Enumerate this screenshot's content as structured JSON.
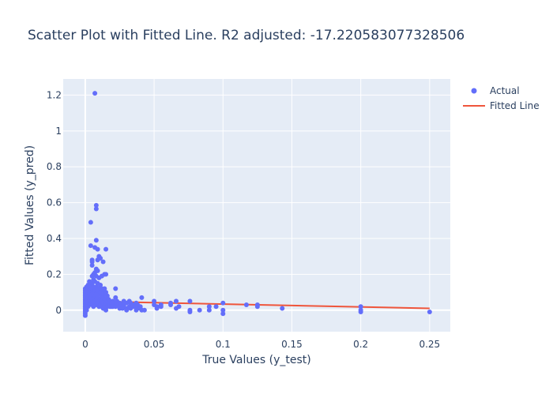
{
  "chart_data": {
    "type": "scatter",
    "title": "Scatter Plot with Fitted Line. R2 adjusted: -17.220583077328506",
    "xlabel": "True Values (y_test)",
    "ylabel": "Fitted Values (y_pred)",
    "xlim": [
      -0.016,
      0.265
    ],
    "ylim": [
      -0.12,
      1.29
    ],
    "x_ticks": [
      0,
      0.05,
      0.1,
      0.15,
      0.2,
      0.25
    ],
    "x_tick_labels": [
      "0",
      "0.05",
      "0.1",
      "0.15",
      "0.2",
      "0.25"
    ],
    "y_ticks": [
      0,
      0.2,
      0.4,
      0.6,
      0.8,
      1,
      1.2
    ],
    "y_tick_labels": [
      "0",
      "0.2",
      "0.4",
      "0.6",
      "0.8",
      "1",
      "1.2"
    ],
    "grid": true,
    "legend_position": "top-right",
    "background_color": "#e5ecf6",
    "series": [
      {
        "name": "Actual",
        "mode": "markers",
        "color": "#636efa",
        "points": [
          [
            0.0,
            0.12
          ],
          [
            0.0,
            0.1
          ],
          [
            0.0,
            0.08
          ],
          [
            0.0,
            0.06
          ],
          [
            0.0,
            0.04
          ],
          [
            0.0,
            0.02
          ],
          [
            0.0,
            0.0
          ],
          [
            0.0,
            -0.02
          ],
          [
            0.0,
            -0.03
          ],
          [
            0.0,
            0.09
          ],
          [
            0.0,
            0.05
          ],
          [
            0.0,
            0.11
          ],
          [
            0.0,
            0.07
          ],
          [
            0.0,
            0.03
          ],
          [
            0.0,
            0.01
          ],
          [
            0.0,
            -0.01
          ],
          [
            0.001,
            0.13
          ],
          [
            0.001,
            0.09
          ],
          [
            0.001,
            0.06
          ],
          [
            0.001,
            0.03
          ],
          [
            0.001,
            0.0
          ],
          [
            0.001,
            0.11
          ],
          [
            0.001,
            0.05
          ],
          [
            0.001,
            0.02
          ],
          [
            0.002,
            0.14
          ],
          [
            0.002,
            0.1
          ],
          [
            0.002,
            0.07
          ],
          [
            0.002,
            0.04
          ],
          [
            0.002,
            0.12
          ],
          [
            0.002,
            0.02
          ],
          [
            0.003,
            0.16
          ],
          [
            0.003,
            0.12
          ],
          [
            0.003,
            0.08
          ],
          [
            0.003,
            0.05
          ],
          [
            0.003,
            0.03
          ],
          [
            0.003,
            0.1
          ],
          [
            0.004,
            0.49
          ],
          [
            0.004,
            0.36
          ],
          [
            0.004,
            0.11
          ],
          [
            0.004,
            0.07
          ],
          [
            0.004,
            0.04
          ],
          [
            0.004,
            0.14
          ],
          [
            0.005,
            0.28
          ],
          [
            0.005,
            0.25
          ],
          [
            0.005,
            0.19
          ],
          [
            0.005,
            0.15
          ],
          [
            0.005,
            0.12
          ],
          [
            0.005,
            0.09
          ],
          [
            0.005,
            0.06
          ],
          [
            0.005,
            0.03
          ],
          [
            0.005,
            0.27
          ],
          [
            0.006,
            0.2
          ],
          [
            0.006,
            0.17
          ],
          [
            0.006,
            0.13
          ],
          [
            0.006,
            0.1
          ],
          [
            0.006,
            0.07
          ],
          [
            0.006,
            0.04
          ],
          [
            0.006,
            0.02
          ],
          [
            0.007,
            1.21
          ],
          [
            0.007,
            0.35
          ],
          [
            0.007,
            0.21
          ],
          [
            0.007,
            0.16
          ],
          [
            0.007,
            0.11
          ],
          [
            0.007,
            0.08
          ],
          [
            0.007,
            0.05
          ],
          [
            0.008,
            0.585
          ],
          [
            0.008,
            0.565
          ],
          [
            0.008,
            0.39
          ],
          [
            0.008,
            0.23
          ],
          [
            0.008,
            0.19
          ],
          [
            0.008,
            0.13
          ],
          [
            0.008,
            0.09
          ],
          [
            0.008,
            0.06
          ],
          [
            0.008,
            0.03
          ],
          [
            0.009,
            0.34
          ],
          [
            0.009,
            0.28
          ],
          [
            0.009,
            0.22
          ],
          [
            0.009,
            0.15
          ],
          [
            0.009,
            0.11
          ],
          [
            0.009,
            0.07
          ],
          [
            0.009,
            0.04
          ],
          [
            0.01,
            0.3
          ],
          [
            0.01,
            0.29
          ],
          [
            0.01,
            0.18
          ],
          [
            0.01,
            0.12
          ],
          [
            0.01,
            0.09
          ],
          [
            0.01,
            0.05
          ],
          [
            0.01,
            0.02
          ],
          [
            0.011,
            0.29
          ],
          [
            0.011,
            0.14
          ],
          [
            0.011,
            0.1
          ],
          [
            0.011,
            0.06
          ],
          [
            0.011,
            0.03
          ],
          [
            0.012,
            0.19
          ],
          [
            0.012,
            0.12
          ],
          [
            0.012,
            0.08
          ],
          [
            0.012,
            0.05
          ],
          [
            0.012,
            0.02
          ],
          [
            0.013,
            0.27
          ],
          [
            0.013,
            0.11
          ],
          [
            0.013,
            0.07
          ],
          [
            0.013,
            0.04
          ],
          [
            0.013,
            0.01
          ],
          [
            0.014,
            0.2
          ],
          [
            0.014,
            0.12
          ],
          [
            0.014,
            0.09
          ],
          [
            0.014,
            0.05
          ],
          [
            0.014,
            0.02
          ],
          [
            0.015,
            0.34
          ],
          [
            0.015,
            0.2
          ],
          [
            0.015,
            0.1
          ],
          [
            0.015,
            0.06
          ],
          [
            0.015,
            0.03
          ],
          [
            0.015,
            0.0
          ],
          [
            0.016,
            0.08
          ],
          [
            0.016,
            0.05
          ],
          [
            0.016,
            0.02
          ],
          [
            0.017,
            0.06
          ],
          [
            0.017,
            0.03
          ],
          [
            0.018,
            0.05
          ],
          [
            0.018,
            0.03
          ],
          [
            0.018,
            0.02
          ],
          [
            0.019,
            0.04
          ],
          [
            0.019,
            0.02
          ],
          [
            0.02,
            0.05
          ],
          [
            0.02,
            0.03
          ],
          [
            0.02,
            0.02
          ],
          [
            0.022,
            0.12
          ],
          [
            0.022,
            0.07
          ],
          [
            0.022,
            0.04
          ],
          [
            0.022,
            0.02
          ],
          [
            0.023,
            0.05
          ],
          [
            0.023,
            0.03
          ],
          [
            0.025,
            0.04
          ],
          [
            0.025,
            0.02
          ],
          [
            0.025,
            0.01
          ],
          [
            0.027,
            0.03
          ],
          [
            0.027,
            0.01
          ],
          [
            0.028,
            0.05
          ],
          [
            0.028,
            0.03
          ],
          [
            0.028,
            0.02
          ],
          [
            0.03,
            0.04
          ],
          [
            0.03,
            0.01
          ],
          [
            0.03,
            0.0
          ],
          [
            0.032,
            0.05
          ],
          [
            0.032,
            0.02
          ],
          [
            0.033,
            0.04
          ],
          [
            0.033,
            0.01
          ],
          [
            0.035,
            0.03
          ],
          [
            0.035,
            0.02
          ],
          [
            0.037,
            0.04
          ],
          [
            0.037,
            0.02
          ],
          [
            0.037,
            0.0
          ],
          [
            0.038,
            0.03
          ],
          [
            0.038,
            0.01
          ],
          [
            0.04,
            0.02
          ],
          [
            0.04,
            0.01
          ],
          [
            0.041,
            0.07
          ],
          [
            0.041,
            0.0
          ],
          [
            0.043,
            0.0
          ],
          [
            0.05,
            0.05
          ],
          [
            0.05,
            0.03
          ],
          [
            0.052,
            0.02
          ],
          [
            0.052,
            0.01
          ],
          [
            0.055,
            0.03
          ],
          [
            0.055,
            0.02
          ],
          [
            0.062,
            0.04
          ],
          [
            0.062,
            0.03
          ],
          [
            0.066,
            0.05
          ],
          [
            0.066,
            0.01
          ],
          [
            0.068,
            0.02
          ],
          [
            0.076,
            0.05
          ],
          [
            0.076,
            0.0
          ],
          [
            0.076,
            -0.01
          ],
          [
            0.083,
            0.0
          ],
          [
            0.09,
            0.02
          ],
          [
            0.09,
            0.0
          ],
          [
            0.095,
            0.02
          ],
          [
            0.1,
            0.04
          ],
          [
            0.1,
            0.0
          ],
          [
            0.1,
            -0.02
          ],
          [
            0.117,
            0.03
          ],
          [
            0.125,
            0.03
          ],
          [
            0.125,
            0.02
          ],
          [
            0.143,
            0.01
          ],
          [
            0.2,
            0.02
          ],
          [
            0.2,
            0.0
          ],
          [
            0.2,
            -0.01
          ],
          [
            0.25,
            -0.01
          ]
        ]
      },
      {
        "name": "Fitted Line",
        "mode": "lines",
        "color": "#ef553b",
        "points": [
          [
            0.0,
            0.05
          ],
          [
            0.25,
            0.01
          ]
        ]
      }
    ]
  }
}
